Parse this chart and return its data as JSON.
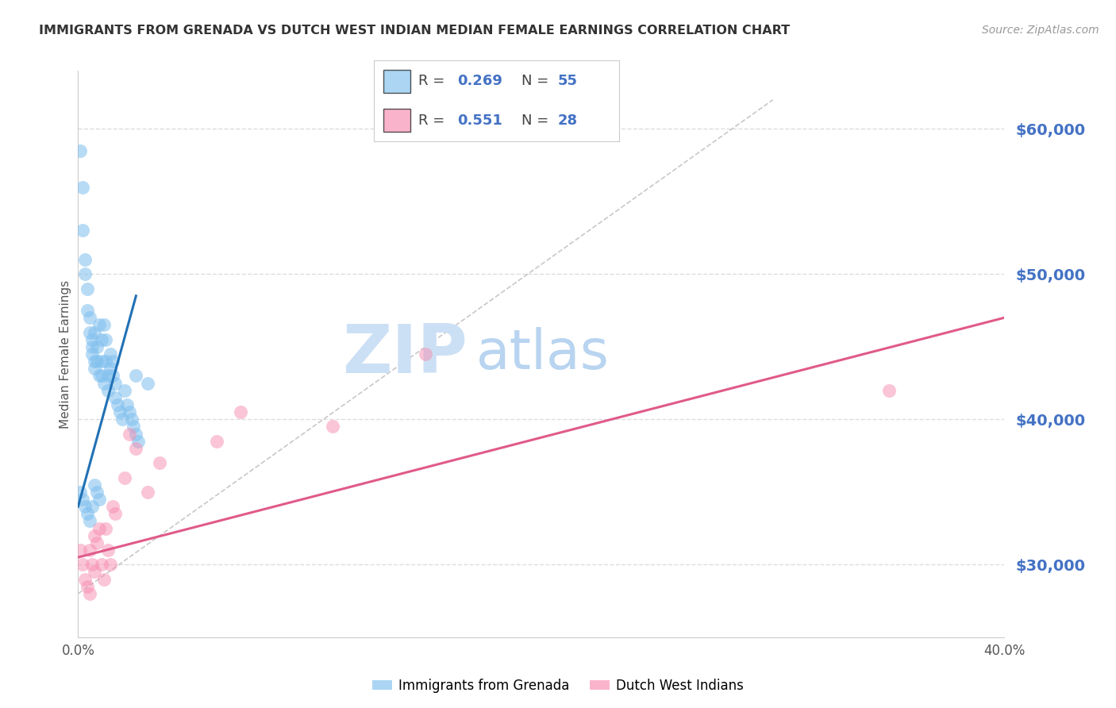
{
  "title": "IMMIGRANTS FROM GRENADA VS DUTCH WEST INDIAN MEDIAN FEMALE EARNINGS CORRELATION CHART",
  "source": "Source: ZipAtlas.com",
  "ylabel": "Median Female Earnings",
  "xlim": [
    0.0,
    0.4
  ],
  "ylim": [
    25000,
    64000
  ],
  "yticks": [
    30000,
    40000,
    50000,
    60000
  ],
  "ytick_labels": [
    "$30,000",
    "$40,000",
    "$50,000",
    "$60,000"
  ],
  "xticks": [
    0.0,
    0.05,
    0.1,
    0.15,
    0.2,
    0.25,
    0.3,
    0.35,
    0.4
  ],
  "blue_scatter_x": [
    0.001,
    0.002,
    0.002,
    0.003,
    0.003,
    0.004,
    0.004,
    0.005,
    0.005,
    0.006,
    0.006,
    0.006,
    0.007,
    0.007,
    0.007,
    0.008,
    0.008,
    0.009,
    0.009,
    0.01,
    0.01,
    0.01,
    0.011,
    0.011,
    0.012,
    0.012,
    0.013,
    0.013,
    0.014,
    0.014,
    0.015,
    0.015,
    0.016,
    0.016,
    0.017,
    0.018,
    0.019,
    0.02,
    0.021,
    0.022,
    0.023,
    0.024,
    0.025,
    0.026,
    0.001,
    0.002,
    0.003,
    0.004,
    0.005,
    0.006,
    0.007,
    0.008,
    0.009,
    0.025,
    0.03
  ],
  "blue_scatter_y": [
    58500,
    56000,
    53000,
    51000,
    50000,
    49000,
    47500,
    47000,
    46000,
    45500,
    45000,
    44500,
    44000,
    43500,
    46000,
    45000,
    44000,
    43000,
    46500,
    45500,
    44000,
    43000,
    42500,
    46500,
    45500,
    44000,
    43000,
    42000,
    44500,
    43500,
    44000,
    43000,
    42500,
    41500,
    41000,
    40500,
    40000,
    42000,
    41000,
    40500,
    40000,
    39500,
    39000,
    38500,
    35000,
    34500,
    34000,
    33500,
    33000,
    34000,
    35500,
    35000,
    34500,
    43000,
    42500
  ],
  "pink_scatter_x": [
    0.001,
    0.002,
    0.003,
    0.004,
    0.005,
    0.005,
    0.006,
    0.007,
    0.007,
    0.008,
    0.009,
    0.01,
    0.011,
    0.012,
    0.013,
    0.014,
    0.015,
    0.016,
    0.02,
    0.022,
    0.025,
    0.03,
    0.035,
    0.06,
    0.07,
    0.11,
    0.15,
    0.35
  ],
  "pink_scatter_y": [
    31000,
    30000,
    29000,
    28500,
    28000,
    31000,
    30000,
    29500,
    32000,
    31500,
    32500,
    30000,
    29000,
    32500,
    31000,
    30000,
    34000,
    33500,
    36000,
    39000,
    38000,
    35000,
    37000,
    38500,
    40500,
    39500,
    44500,
    42000
  ],
  "blue_line_x": [
    0.0,
    0.025
  ],
  "blue_line_y": [
    34000,
    48500
  ],
  "pink_line_x": [
    0.0,
    0.4
  ],
  "pink_line_y": [
    30500,
    47000
  ],
  "diag_line_x": [
    0.0,
    0.3
  ],
  "diag_line_y": [
    28000,
    62000
  ],
  "blue_scatter_color": "#7fbfee",
  "pink_scatter_color": "#f78db0",
  "blue_line_color": "#2171b5",
  "pink_line_color": "#e05a8a",
  "diag_line_color": "#c8c8c8",
  "title_color": "#333333",
  "ytick_color": "#4472c4",
  "watermark_zip_color": "#cce0f5",
  "watermark_atlas_color": "#b8d4f0",
  "background_color": "#ffffff",
  "grid_color": "#dddddd",
  "bottom_legend_label1": "Immigrants from Grenada",
  "bottom_legend_label2": "Dutch West Indians",
  "legend_r1": "0.269",
  "legend_n1": "55",
  "legend_r2": "0.551",
  "legend_n2": "28"
}
